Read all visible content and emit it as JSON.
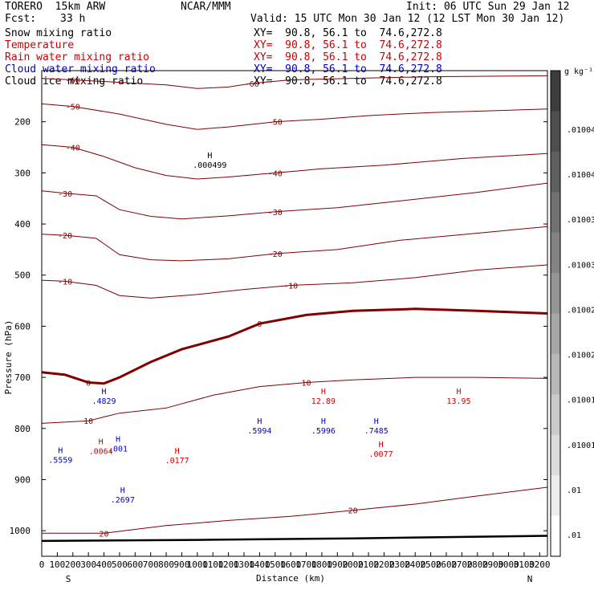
{
  "header": {
    "model": "TORERO  15km ARW",
    "center": "NCAR/MMM",
    "init": "Init: 06 UTC Sun 29 Jan 12",
    "fcst_label": "Fcst:",
    "fcst_value": "33 h",
    "valid": "Valid: 15 UTC Mon 30 Jan 12 (12 LST Mon 30 Jan 12)"
  },
  "fields": [
    {
      "name": "Snow mixing ratio",
      "xy": "XY=  90.8, 56.1 to  74.6,272.8",
      "color": "#000000"
    },
    {
      "name": "Temperature",
      "xy": "XY=  90.8, 56.1 to  74.6,272.8",
      "color": "#cc0000"
    },
    {
      "name": "Rain water mixing ratio",
      "xy": "XY=  90.8, 56.1 to  74.6,272.8",
      "color": "#cc0000"
    },
    {
      "name": "Cloud water mixing ratio",
      "xy": "XY=  90.8, 56.1 to  74.6,272.8",
      "color": "#0000cc"
    },
    {
      "name": "Cloud ice mixing ratio",
      "xy": "XY=  90.8, 56.1 to  74.6,272.8",
      "color": "#000000"
    }
  ],
  "chart_data": {
    "type": "line",
    "xlabel": "Distance (km)",
    "ylabel": "Pressure (hPa)",
    "x_ticks": [
      0,
      100,
      200,
      300,
      400,
      500,
      600,
      700,
      800,
      900,
      1000,
      1100,
      1200,
      1300,
      1400,
      1500,
      1600,
      1700,
      1800,
      1900,
      2000,
      2100,
      2200,
      2300,
      2400,
      2500,
      2600,
      2700,
      2800,
      2900,
      3000,
      3100,
      3200
    ],
    "y_ticks": [
      200,
      300,
      400,
      500,
      600,
      700,
      800,
      900,
      1000
    ],
    "xlim": [
      0,
      3250
    ],
    "ylim": [
      100,
      1050
    ],
    "y_inverted": true,
    "end_labels": {
      "left": "S",
      "right": "N"
    },
    "temperature_contours": [
      {
        "level": -60,
        "points": [
          [
            0,
            115
          ],
          [
            200,
            118
          ],
          [
            500,
            123
          ],
          [
            800,
            128
          ],
          [
            1000,
            135
          ],
          [
            1200,
            132
          ],
          [
            1350,
            125
          ],
          [
            1600,
            118
          ],
          [
            2000,
            115
          ],
          [
            2500,
            112
          ],
          [
            3250,
            110
          ]
        ]
      },
      {
        "level": -50,
        "points": [
          [
            0,
            165
          ],
          [
            200,
            170
          ],
          [
            500,
            185
          ],
          [
            800,
            205
          ],
          [
            1000,
            215
          ],
          [
            1200,
            210
          ],
          [
            1500,
            200
          ],
          [
            1800,
            195
          ],
          [
            2100,
            188
          ],
          [
            2500,
            182
          ],
          [
            3250,
            175
          ]
        ]
      },
      {
        "level": -40,
        "points": [
          [
            0,
            245
          ],
          [
            200,
            250
          ],
          [
            400,
            268
          ],
          [
            600,
            290
          ],
          [
            800,
            305
          ],
          [
            1000,
            312
          ],
          [
            1200,
            308
          ],
          [
            1500,
            300
          ],
          [
            1800,
            292
          ],
          [
            2200,
            285
          ],
          [
            2700,
            272
          ],
          [
            3250,
            262
          ]
        ]
      },
      {
        "level": -30,
        "points": [
          [
            0,
            335
          ],
          [
            150,
            340
          ],
          [
            350,
            345
          ],
          [
            500,
            372
          ],
          [
            700,
            385
          ],
          [
            900,
            390
          ],
          [
            1200,
            384
          ],
          [
            1500,
            376
          ],
          [
            1900,
            368
          ],
          [
            2300,
            355
          ],
          [
            2800,
            338
          ],
          [
            3250,
            320
          ]
        ]
      },
      {
        "level": -20,
        "points": [
          [
            0,
            420
          ],
          [
            150,
            422
          ],
          [
            350,
            428
          ],
          [
            500,
            460
          ],
          [
            700,
            470
          ],
          [
            900,
            472
          ],
          [
            1200,
            468
          ],
          [
            1500,
            458
          ],
          [
            1900,
            450
          ],
          [
            2300,
            432
          ],
          [
            2800,
            418
          ],
          [
            3250,
            405
          ]
        ]
      },
      {
        "level": -10,
        "points": [
          [
            0,
            510
          ],
          [
            150,
            512
          ],
          [
            350,
            520
          ],
          [
            500,
            540
          ],
          [
            700,
            545
          ],
          [
            1000,
            538
          ],
          [
            1300,
            528
          ],
          [
            1600,
            520
          ],
          [
            2000,
            515
          ],
          [
            2400,
            505
          ],
          [
            2800,
            490
          ],
          [
            3250,
            480
          ]
        ]
      },
      {
        "level": 0,
        "points": [
          [
            0,
            690
          ],
          [
            150,
            695
          ],
          [
            300,
            710
          ],
          [
            400,
            712
          ],
          [
            500,
            700
          ],
          [
            700,
            670
          ],
          [
            900,
            645
          ],
          [
            1200,
            620
          ],
          [
            1400,
            595
          ],
          [
            1700,
            578
          ],
          [
            2000,
            570
          ],
          [
            2400,
            566
          ],
          [
            2800,
            570
          ],
          [
            3250,
            575
          ]
        ]
      },
      {
        "level": 10,
        "points": [
          [
            0,
            790
          ],
          [
            300,
            785
          ],
          [
            500,
            770
          ],
          [
            800,
            760
          ],
          [
            1100,
            735
          ],
          [
            1400,
            718
          ],
          [
            1700,
            710
          ],
          [
            2000,
            705
          ],
          [
            2400,
            700
          ],
          [
            2800,
            700
          ],
          [
            3250,
            702
          ]
        ]
      },
      {
        "level": 20,
        "points": [
          [
            0,
            1005
          ],
          [
            400,
            1005
          ],
          [
            800,
            990
          ],
          [
            1200,
            980
          ],
          [
            1600,
            972
          ],
          [
            2000,
            960
          ],
          [
            2400,
            948
          ],
          [
            2800,
            932
          ],
          [
            3250,
            915
          ]
        ]
      }
    ],
    "surface_line": {
      "points": [
        [
          0,
          1020
        ],
        [
          1000,
          1018
        ],
        [
          2000,
          1015
        ],
        [
          3250,
          1010
        ]
      ]
    },
    "maxima_labels": [
      {
        "text": ".000499",
        "x": 1080,
        "p": 290,
        "color": "#000000"
      },
      {
        "text": "12.89",
        "x": 1810,
        "p": 752,
        "color": "#cc0000"
      },
      {
        "text": "13.95",
        "x": 2680,
        "p": 752,
        "color": "#cc0000"
      },
      {
        "text": ".4829",
        "x": 400,
        "p": 752,
        "color": "#0000cc"
      },
      {
        "text": ".5559",
        "x": 120,
        "p": 867,
        "color": "#0000cc"
      },
      {
        "text": ".2697",
        "x": 520,
        "p": 945,
        "color": "#0000cc"
      },
      {
        "text": ".5994",
        "x": 1400,
        "p": 810,
        "color": "#0000cc"
      },
      {
        "text": ".5996",
        "x": 1810,
        "p": 810,
        "color": "#0000cc"
      },
      {
        "text": ".7485",
        "x": 2150,
        "p": 810,
        "color": "#0000cc"
      },
      {
        "text": ".001",
        "x": 490,
        "p": 845,
        "color": "#0000cc"
      },
      {
        "text": ".0064",
        "x": 380,
        "p": 850,
        "color": "#cc0000"
      },
      {
        "text": ".0177",
        "x": 870,
        "p": 868,
        "color": "#cc0000"
      },
      {
        "text": ".0077",
        "x": 2180,
        "p": 855,
        "color": "#cc0000"
      }
    ],
    "colorbar": {
      "unit": "g kg⁻¹",
      "labels": [
        ".01004",
        ".01004",
        ".01003",
        ".01003",
        ".01002",
        ".01002",
        ".01001",
        ".01001",
        ".01",
        ".01"
      ]
    }
  }
}
